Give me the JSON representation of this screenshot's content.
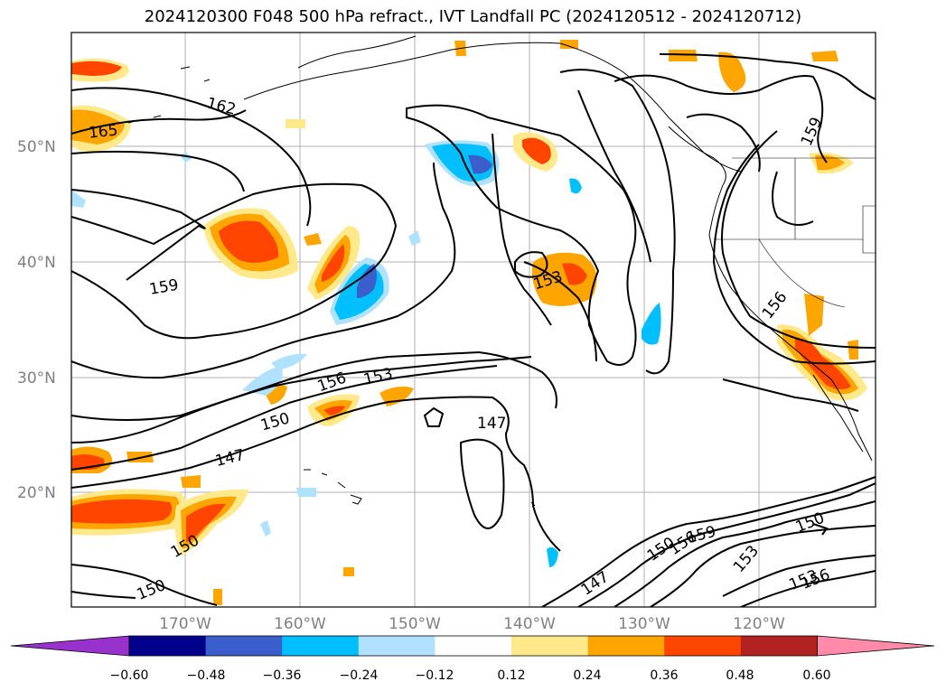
{
  "title": "2024120300 F048 500 hPa refract., IVT Landfall PC (2024120512 - 2024120712)",
  "lat_labels": [
    "50°N",
    "40°N",
    "30°N",
    "20°N"
  ],
  "lon_labels": [
    "170°W",
    "160°W",
    "150°W",
    "140°W",
    "130°W",
    "120°W"
  ],
  "contour_labels": [
    "162",
    "165",
    "159",
    "156",
    "153",
    "150",
    "147",
    "147",
    "153",
    "159",
    "156",
    "150",
    "156",
    "159",
    "153",
    "147",
    "150",
    "153",
    "150",
    "156",
    "150"
  ],
  "colorbar": {
    "ticks": [
      "−0.60",
      "−0.48",
      "−0.36",
      "−0.24",
      "−0.12",
      "0.12",
      "0.24",
      "0.36",
      "0.48",
      "0.60"
    ],
    "colors": [
      "#9932cc",
      "#00008b",
      "#3a5fcd",
      "#00bfff",
      "#b0e2ff",
      "#ffffff",
      "#ffe98a",
      "#ffa500",
      "#ff4500",
      "#b22222",
      "#ff8aaa"
    ]
  },
  "colors": {
    "gridline": "#b0b0b0",
    "contour": "#000000",
    "positive_fill": [
      "#ffe98a",
      "#ffa500",
      "#ff4500"
    ],
    "negative_fill": [
      "#b0e2ff",
      "#00bfff",
      "#3a5fcd"
    ]
  }
}
